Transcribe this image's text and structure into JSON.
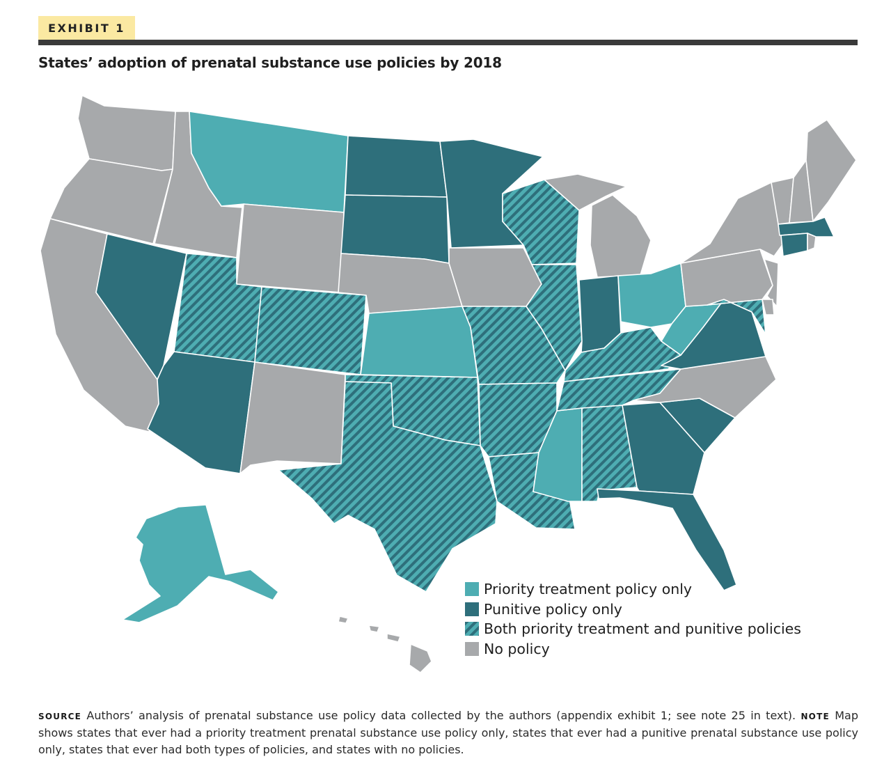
{
  "header": {
    "exhibit_label": "EXHIBIT 1",
    "title": "States’ adoption of prenatal substance use policies by 2018"
  },
  "colors": {
    "priority_treatment": "#4eadb2",
    "punitive": "#2e6f7b",
    "both": "#4eadb2",
    "both_stripe": "#2e6f7b",
    "none": "#a7a9ab"
  },
  "legend": [
    {
      "key": "priority",
      "label": "Priority treatment policy only"
    },
    {
      "key": "punitive",
      "label": "Punitive policy only"
    },
    {
      "key": "both",
      "label": "Both priority treatment and punitive policies"
    },
    {
      "key": "none",
      "label": "No policy"
    }
  ],
  "map": {
    "states": {
      "AL": "both",
      "AK": "priority",
      "AZ": "punitive",
      "AR": "both",
      "CA": "none",
      "CO": "both",
      "CT": "punitive",
      "DE": "none",
      "FL": "punitive",
      "GA": "punitive",
      "HI": "none",
      "ID": "none",
      "IL": "both",
      "IN": "punitive",
      "IA": "none",
      "KS": "priority",
      "KY": "both",
      "LA": "both",
      "ME": "none",
      "MD": "both",
      "MA": "punitive",
      "MI": "none",
      "MN": "punitive",
      "MS": "priority",
      "MO": "both",
      "MT": "priority",
      "NE": "none",
      "NV": "punitive",
      "NH": "none",
      "NJ": "none",
      "NM": "none",
      "NY": "none",
      "NC": "none",
      "ND": "punitive",
      "OH": "priority",
      "OK": "both",
      "OR": "none",
      "PA": "none",
      "RI": "none",
      "SC": "punitive",
      "SD": "punitive",
      "TN": "both",
      "TX": "both",
      "UT": "both",
      "VT": "none",
      "VA": "punitive",
      "WA": "none",
      "WV": "priority",
      "WI": "both",
      "WY": "none"
    }
  },
  "footer": {
    "source_label": "SOURCE",
    "source_text": "Authors’ analysis of prenatal substance use policy data collected by the authors (appendix exhibit 1; see note 25 in text).",
    "note_label": "NOTE",
    "note_text": "Map shows states that ever had a priority treatment prenatal substance use policy only, states that ever had a punitive prenatal substance use policy only, states that ever had both types of policies, and states with no policies."
  }
}
